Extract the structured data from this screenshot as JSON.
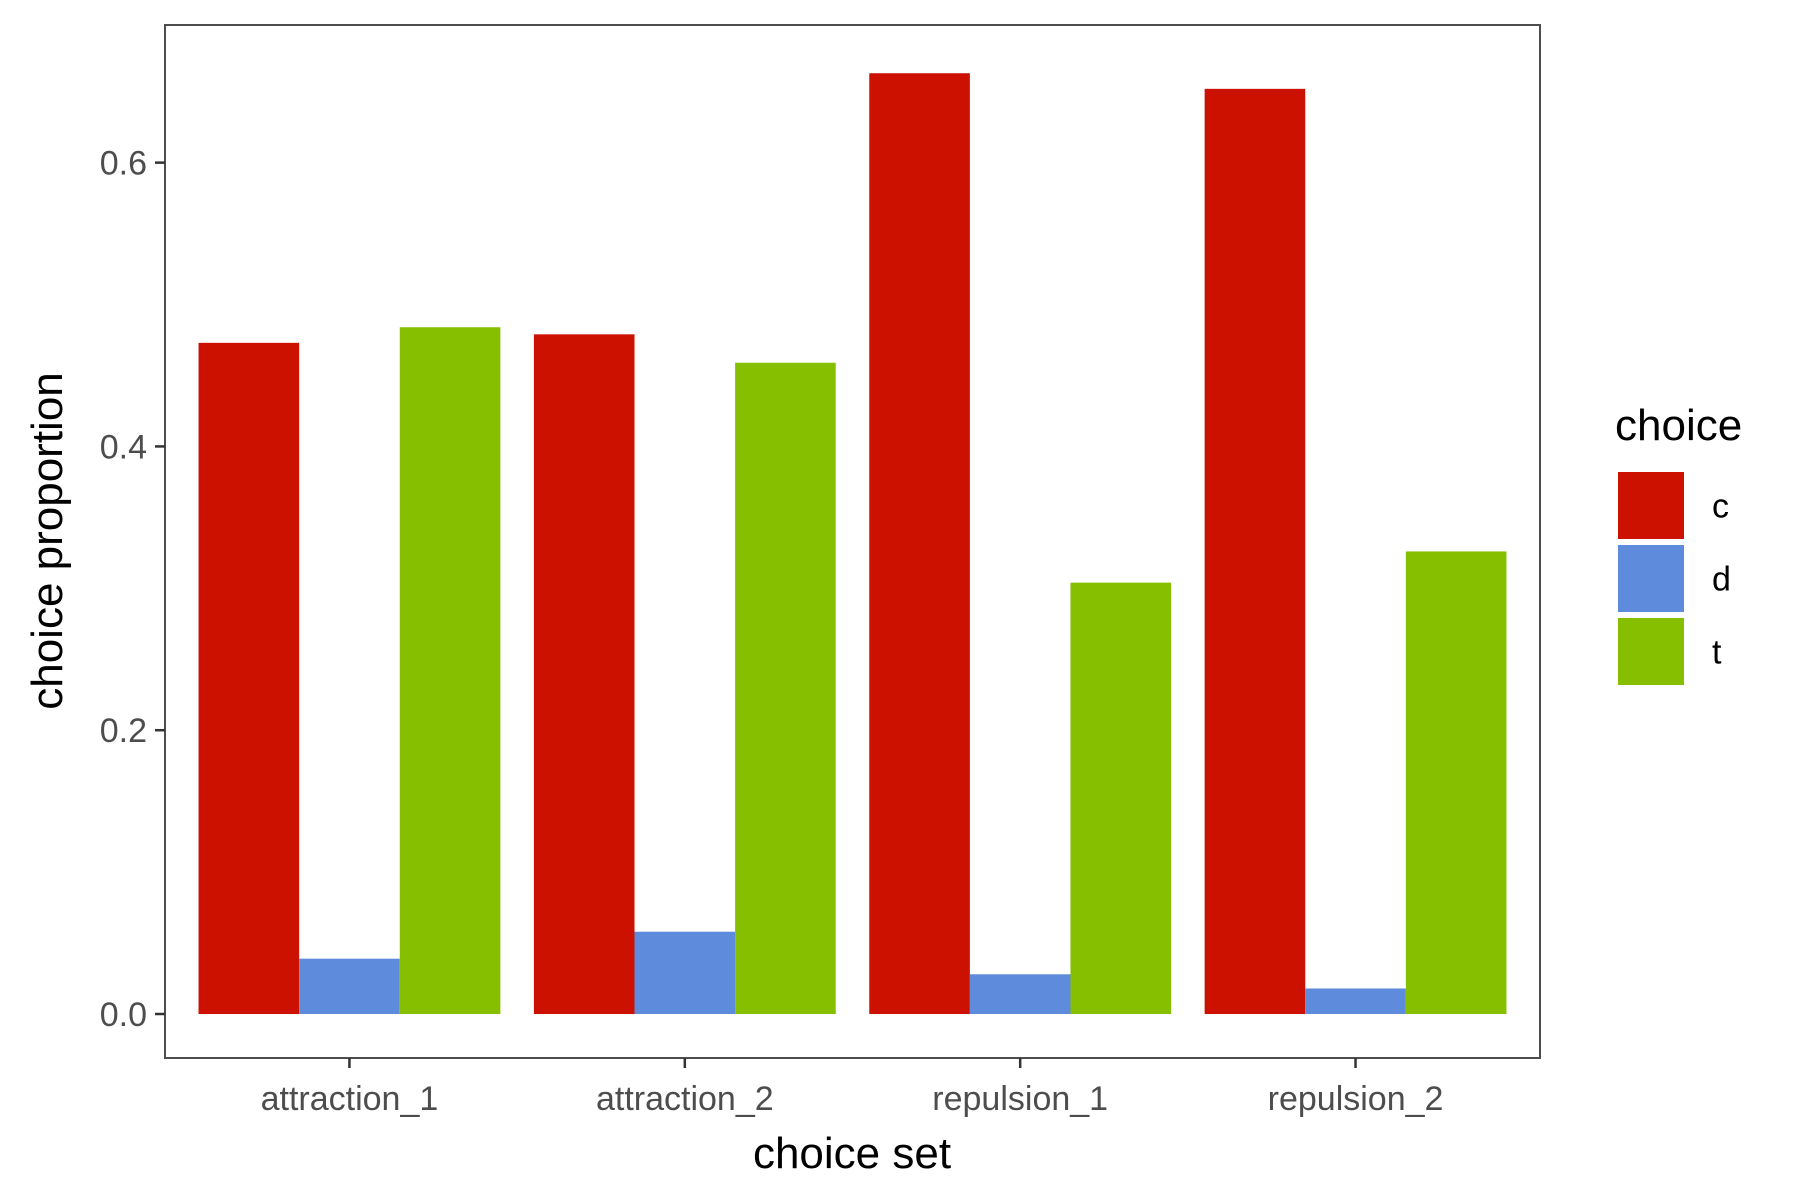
{
  "chart_data": {
    "type": "bar",
    "xlabel": "choice set",
    "ylabel": "choice proportion",
    "categories": [
      "attraction_1",
      "attraction_2",
      "repulsion_1",
      "repulsion_2"
    ],
    "series": [
      {
        "name": "c",
        "color": "#CC1100",
        "values": [
          0.473,
          0.479,
          0.663,
          0.652
        ]
      },
      {
        "name": "d",
        "color": "#5E8BDC",
        "values": [
          0.039,
          0.058,
          0.028,
          0.018
        ]
      },
      {
        "name": "t",
        "color": "#85BF00",
        "values": [
          0.484,
          0.459,
          0.304,
          0.326
        ]
      }
    ],
    "ylim": [
      -0.031,
      0.697
    ],
    "yticks": [
      0.0,
      0.2,
      0.4,
      0.6
    ],
    "ytick_labels": [
      "0.0",
      "0.2",
      "0.4",
      "0.6"
    ],
    "legend": {
      "title": "choice",
      "position": "right"
    },
    "grid": false
  }
}
